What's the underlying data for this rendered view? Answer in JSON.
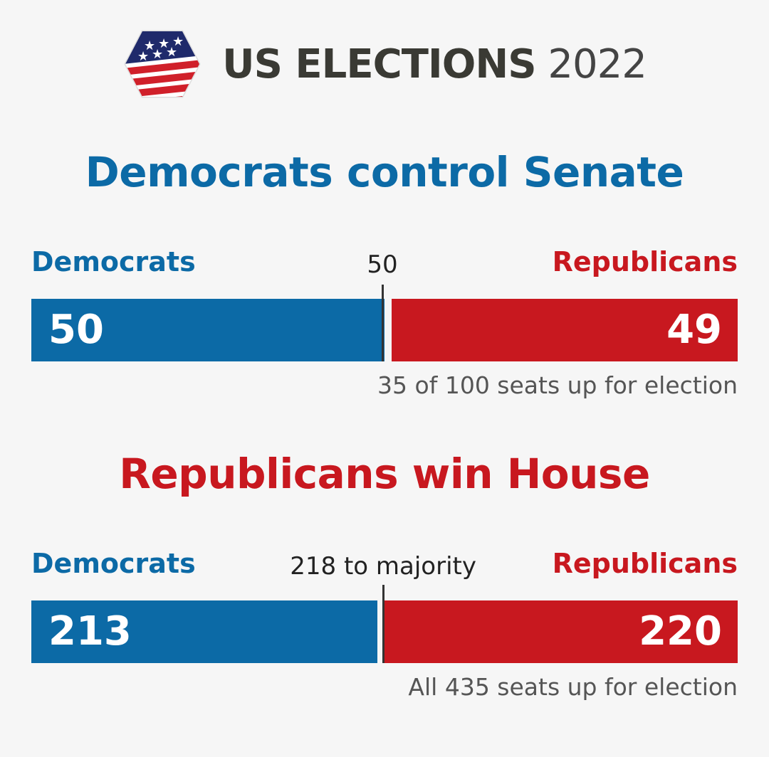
{
  "header": {
    "brand_bold": "US ELECTIONS",
    "brand_year": "2022"
  },
  "colors": {
    "democrat": "#0c6aa6",
    "republican": "#c8181f",
    "background": "#f6f6f6"
  },
  "chart_data": [
    {
      "type": "bar",
      "title": "Democrats control Senate",
      "title_color": "#0c6aa6",
      "series": [
        {
          "name": "Democrats",
          "values": [
            50
          ]
        },
        {
          "name": "Republicans",
          "values": [
            49
          ]
        }
      ],
      "threshold": 50,
      "threshold_label": "50",
      "total": 100,
      "note": "35 of 100 seats up for election"
    },
    {
      "type": "bar",
      "title": "Republicans win House",
      "title_color": "#c8181f",
      "series": [
        {
          "name": "Democrats",
          "values": [
            213
          ]
        },
        {
          "name": "Republicans",
          "values": [
            220
          ]
        }
      ],
      "threshold": 218,
      "threshold_label": "218 to majority",
      "total": 435,
      "note": "All 435 seats up for election"
    }
  ]
}
